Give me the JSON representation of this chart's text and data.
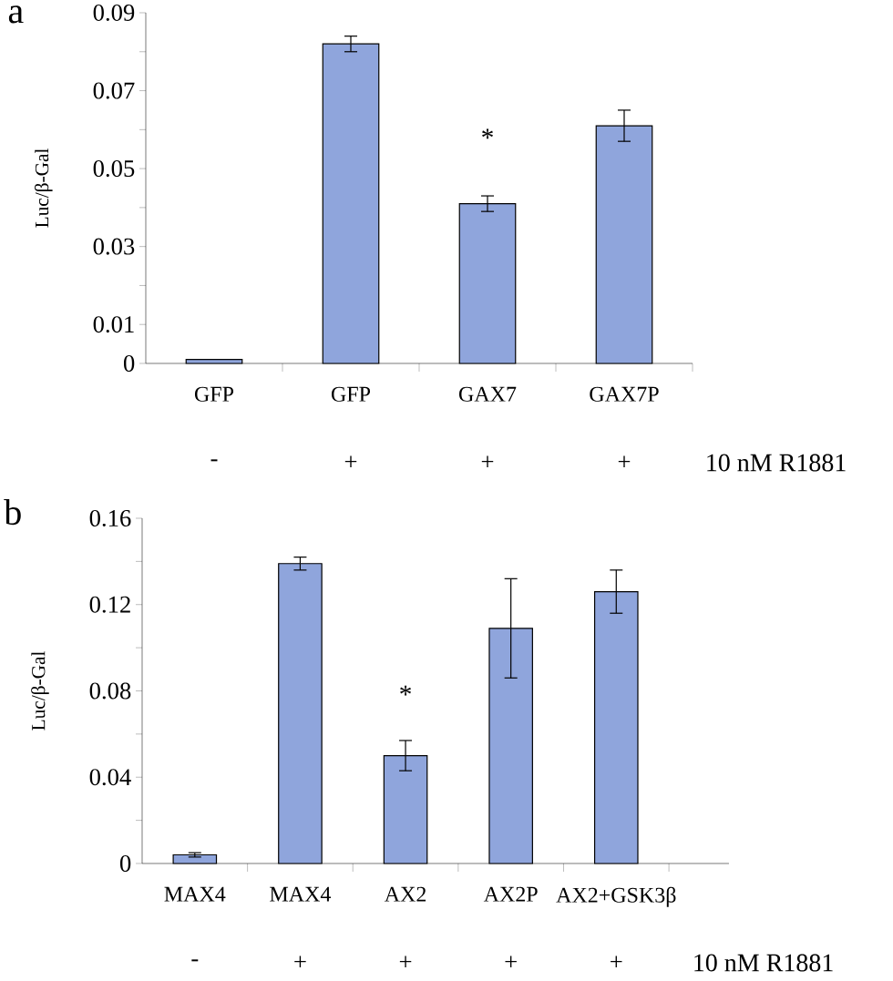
{
  "chart_data": [
    {
      "type": "bar",
      "title": "a",
      "ylabel": "Luc/β-Gal",
      "categories": [
        "GFP",
        "GFP",
        "GAX7",
        "GAX7P"
      ],
      "values": [
        0.001,
        0.082,
        0.041,
        0.061
      ],
      "errors": [
        null,
        0.002,
        0.002,
        0.004
      ],
      "color": "#8fa5dc",
      "ylim": [
        0,
        0.09
      ],
      "yticks": [
        0,
        0.01,
        {
          "value": 0.02,
          "label": null
        },
        0.03,
        {
          "value": 0.04,
          "label": null
        },
        0.05,
        {
          "value": 0.06,
          "label": null
        },
        0.07,
        {
          "value": 0.08,
          "label": null
        },
        0.09
      ],
      "annotations": [
        "*",
        "-",
        "+",
        "+",
        "+",
        "10 nM R1881"
      ]
    },
    {
      "type": "bar",
      "title": "b",
      "ylabel": "Luc/β-Gal",
      "categories": [
        "MAX4",
        "MAX4",
        "AX2",
        "AX2P",
        "AX2+GSK3β"
      ],
      "values": [
        0.004,
        0.139,
        0.05,
        0.109,
        0.126
      ],
      "errors": [
        0.001,
        0.003,
        0.007,
        0.023,
        0.01
      ],
      "color": "#8fa5dc",
      "ylim": [
        0,
        0.16
      ],
      "yticks": [
        0,
        {
          "value": 0.02,
          "label": null
        },
        0.04,
        {
          "value": 0.06,
          "label": null
        },
        0.08,
        {
          "value": 0.1,
          "label": null
        },
        0.12,
        {
          "value": 0.14,
          "label": null
        },
        0.16
      ],
      "annotations": [
        "*",
        "-",
        "+",
        "+",
        "+",
        "+",
        "10 nM R1881"
      ]
    }
  ]
}
